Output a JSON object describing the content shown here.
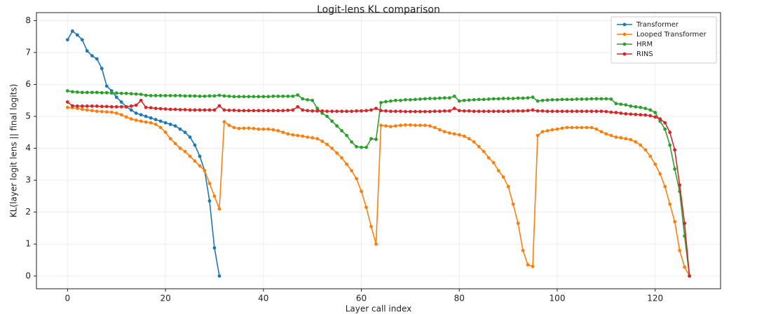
{
  "chart_data": {
    "type": "line",
    "title": "Logit-lens KL comparison",
    "x_label": "Layer call index",
    "y_label": "KL(layer logit lens || final logits)",
    "x": [
      0,
      1,
      2,
      3,
      4,
      5,
      6,
      7,
      8,
      9,
      10,
      11,
      12,
      13,
      14,
      15,
      16,
      17,
      18,
      19,
      20,
      21,
      22,
      23,
      24,
      25,
      26,
      27,
      28,
      29,
      30,
      31,
      32,
      33,
      34,
      35,
      36,
      37,
      38,
      39,
      40,
      41,
      42,
      43,
      44,
      45,
      46,
      47,
      48,
      49,
      50,
      51,
      52,
      53,
      54,
      55,
      56,
      57,
      58,
      59,
      60,
      61,
      62,
      63,
      64,
      65,
      66,
      67,
      68,
      69,
      70,
      71,
      72,
      73,
      74,
      75,
      76,
      77,
      78,
      79,
      80,
      81,
      82,
      83,
      84,
      85,
      86,
      87,
      88,
      89,
      90,
      91,
      92,
      93,
      94,
      95,
      96,
      97,
      98,
      99,
      100,
      101,
      102,
      103,
      104,
      105,
      106,
      107,
      108,
      109,
      110,
      111,
      112,
      113,
      114,
      115,
      116,
      117,
      118,
      119,
      120,
      121,
      122,
      123,
      124,
      125,
      126,
      127
    ],
    "series": [
      {
        "name": "Transformer",
        "color": "#1f77b4",
        "values": [
          7.4,
          7.67,
          7.55,
          7.4,
          7.05,
          6.9,
          6.8,
          6.5,
          5.95,
          5.8,
          5.6,
          5.45,
          5.3,
          5.2,
          5.1,
          5.05,
          5.0,
          4.95,
          4.9,
          4.85,
          4.8,
          4.75,
          4.7,
          4.6,
          4.5,
          4.35,
          4.1,
          3.75,
          3.3,
          2.35,
          0.88,
          0.0,
          null,
          null,
          null,
          null,
          null,
          null,
          null,
          null,
          null,
          null,
          null,
          null,
          null,
          null,
          null,
          null,
          null,
          null,
          null,
          null,
          null,
          null,
          null,
          null,
          null,
          null,
          null,
          null,
          null,
          null,
          null,
          null,
          null,
          null,
          null,
          null,
          null,
          null,
          null,
          null,
          null,
          null,
          null,
          null,
          null,
          null,
          null,
          null,
          null,
          null,
          null,
          null,
          null,
          null,
          null,
          null,
          null,
          null,
          null,
          null,
          null,
          null,
          null,
          null,
          null,
          null,
          null,
          null,
          null,
          null,
          null,
          null,
          null,
          null,
          null,
          null,
          null,
          null,
          null,
          null,
          null,
          null,
          null,
          null,
          null,
          null,
          null,
          null,
          null,
          null,
          null,
          null,
          null,
          null,
          null,
          null
        ]
      },
      {
        "name": "Looped Transformer",
        "color": "#ff7f0e",
        "values": [
          5.28,
          5.27,
          5.25,
          5.22,
          5.2,
          5.18,
          5.16,
          5.15,
          5.14,
          5.13,
          5.1,
          5.05,
          4.98,
          4.92,
          4.88,
          4.85,
          4.82,
          4.8,
          4.75,
          4.65,
          4.5,
          4.3,
          4.15,
          4.0,
          3.9,
          3.75,
          3.6,
          3.45,
          3.3,
          2.9,
          2.5,
          2.1,
          4.83,
          4.72,
          4.65,
          4.62,
          4.63,
          4.63,
          4.62,
          4.6,
          4.6,
          4.6,
          4.58,
          4.55,
          4.5,
          4.45,
          4.42,
          4.4,
          4.38,
          4.35,
          4.33,
          4.3,
          4.22,
          4.12,
          4.0,
          3.85,
          3.7,
          3.5,
          3.3,
          3.05,
          2.65,
          2.15,
          1.55,
          1.0,
          4.72,
          4.7,
          4.68,
          4.7,
          4.72,
          4.73,
          4.73,
          4.72,
          4.72,
          4.72,
          4.7,
          4.65,
          4.58,
          4.52,
          4.48,
          4.45,
          4.42,
          4.38,
          4.3,
          4.2,
          4.05,
          3.9,
          3.7,
          3.55,
          3.3,
          3.1,
          2.8,
          2.25,
          1.65,
          0.8,
          0.35,
          0.3,
          4.4,
          4.52,
          4.55,
          4.58,
          4.6,
          4.63,
          4.65,
          4.65,
          4.65,
          4.65,
          4.65,
          4.65,
          4.6,
          4.52,
          4.45,
          4.4,
          4.35,
          4.33,
          4.3,
          4.27,
          4.2,
          4.1,
          3.95,
          3.75,
          3.5,
          3.2,
          2.8,
          2.25,
          1.7,
          0.8,
          0.28,
          0.0
        ]
      },
      {
        "name": "HRM",
        "color": "#2ca02c",
        "values": [
          5.8,
          5.77,
          5.76,
          5.75,
          5.75,
          5.75,
          5.75,
          5.74,
          5.74,
          5.73,
          5.73,
          5.72,
          5.72,
          5.71,
          5.7,
          5.69,
          5.66,
          5.65,
          5.65,
          5.65,
          5.65,
          5.65,
          5.65,
          5.65,
          5.64,
          5.64,
          5.64,
          5.63,
          5.63,
          5.64,
          5.64,
          5.66,
          5.64,
          5.63,
          5.62,
          5.62,
          5.62,
          5.62,
          5.62,
          5.62,
          5.62,
          5.62,
          5.63,
          5.63,
          5.63,
          5.63,
          5.63,
          5.67,
          5.55,
          5.52,
          5.5,
          5.25,
          5.1,
          5.0,
          4.85,
          4.7,
          4.55,
          4.4,
          4.2,
          4.05,
          4.03,
          4.03,
          4.3,
          4.28,
          5.43,
          5.46,
          5.48,
          5.5,
          5.5,
          5.52,
          5.52,
          5.53,
          5.54,
          5.55,
          5.56,
          5.56,
          5.57,
          5.58,
          5.58,
          5.63,
          5.48,
          5.5,
          5.51,
          5.52,
          5.53,
          5.53,
          5.54,
          5.55,
          5.55,
          5.56,
          5.56,
          5.56,
          5.57,
          5.57,
          5.58,
          5.6,
          5.48,
          5.5,
          5.51,
          5.52,
          5.52,
          5.53,
          5.53,
          5.53,
          5.54,
          5.54,
          5.54,
          5.55,
          5.55,
          5.55,
          5.55,
          5.54,
          5.4,
          5.38,
          5.36,
          5.32,
          5.3,
          5.28,
          5.25,
          5.2,
          5.12,
          4.85,
          4.6,
          4.1,
          3.35,
          2.65,
          1.25,
          0.0
        ]
      },
      {
        "name": "RINS",
        "color": "#d62728",
        "values": [
          5.45,
          5.33,
          5.32,
          5.32,
          5.32,
          5.32,
          5.32,
          5.31,
          5.31,
          5.3,
          5.3,
          5.3,
          5.3,
          5.32,
          5.35,
          5.5,
          5.28,
          5.27,
          5.25,
          5.24,
          5.23,
          5.22,
          5.22,
          5.21,
          5.21,
          5.2,
          5.2,
          5.2,
          5.2,
          5.2,
          5.2,
          5.33,
          5.2,
          5.19,
          5.19,
          5.18,
          5.18,
          5.18,
          5.18,
          5.18,
          5.18,
          5.18,
          5.18,
          5.18,
          5.18,
          5.19,
          5.2,
          5.3,
          5.2,
          5.18,
          5.17,
          5.17,
          5.17,
          5.16,
          5.16,
          5.16,
          5.16,
          5.16,
          5.16,
          5.17,
          5.17,
          5.18,
          5.2,
          5.25,
          5.18,
          5.17,
          5.16,
          5.16,
          5.16,
          5.15,
          5.15,
          5.15,
          5.15,
          5.15,
          5.15,
          5.16,
          5.16,
          5.17,
          5.17,
          5.25,
          5.18,
          5.17,
          5.17,
          5.16,
          5.16,
          5.16,
          5.16,
          5.16,
          5.16,
          5.16,
          5.16,
          5.17,
          5.17,
          5.17,
          5.18,
          5.2,
          5.17,
          5.17,
          5.16,
          5.16,
          5.16,
          5.16,
          5.16,
          5.16,
          5.16,
          5.16,
          5.16,
          5.16,
          5.16,
          5.16,
          5.15,
          5.13,
          5.12,
          5.1,
          5.08,
          5.07,
          5.06,
          5.05,
          5.04,
          5.02,
          4.98,
          4.92,
          4.8,
          4.5,
          3.95,
          2.85,
          1.65,
          0.0
        ]
      }
    ],
    "xlim": [
      -6.35,
      133.35
    ],
    "xticks": [
      0,
      20,
      40,
      60,
      80,
      100,
      120
    ],
    "ylim": [
      -0.4,
      8.25
    ],
    "yticks": [
      0,
      1,
      2,
      3,
      4,
      5,
      6,
      7,
      8
    ],
    "grid": true,
    "legend": "upper right"
  }
}
